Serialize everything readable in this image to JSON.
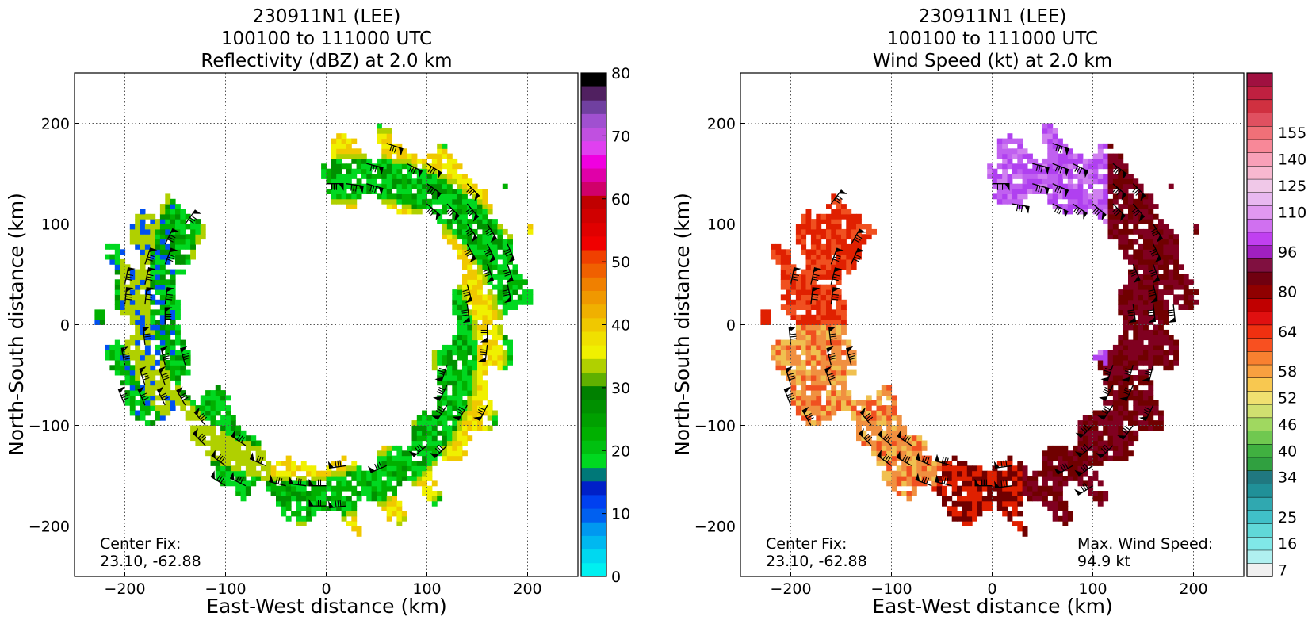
{
  "chart_data": [
    {
      "type": "heatmap",
      "title": [
        "230911N1 (LEE)",
        "100100 to 111000 UTC",
        "Reflectivity (dBZ) at 2.0 km"
      ],
      "xlabel": "East-West distance (km)",
      "ylabel": "North-South distance (km)",
      "xlim": [
        -250,
        250
      ],
      "ylim": [
        -250,
        250
      ],
      "xticks": [
        -200,
        -100,
        0,
        100,
        200
      ],
      "yticks": [
        -200,
        -100,
        0,
        100,
        200
      ],
      "grid": true,
      "annotation": [
        "Center Fix:",
        "23.10, -62.88"
      ],
      "colorbar": {
        "ticks": [
          0,
          10,
          20,
          30,
          40,
          50,
          60,
          70,
          80
        ],
        "range": [
          0,
          80
        ],
        "colors": [
          "#00f0f0",
          "#00d8f0",
          "#00b8f0",
          "#0098f0",
          "#0060f0",
          "#0040f0",
          "#0020c8",
          "#007878",
          "#00d820",
          "#00c010",
          "#00b000",
          "#00a000",
          "#009000",
          "#008000",
          "#60b000",
          "#b0d000",
          "#f0f000",
          "#f0e000",
          "#f0c800",
          "#f0b000",
          "#f09800",
          "#f08000",
          "#f06000",
          "#f04000",
          "#f00000",
          "#e00000",
          "#d00000",
          "#c00000",
          "#d0006a",
          "#e000a8",
          "#f000e0",
          "#e040f0",
          "#c050e0",
          "#a050d0",
          "#7040a0",
          "#502060",
          "#000000"
        ]
      },
      "field_palette": [
        "#00d820",
        "#00b000",
        "#009000",
        "#b0d000",
        "#f0f000",
        "#f0c800",
        "#0050f0"
      ]
    },
    {
      "type": "heatmap",
      "title": [
        "230911N1 (LEE)",
        "100100 to 111000 UTC",
        "Wind Speed (kt) at 2.0 km"
      ],
      "xlabel": "East-West distance (km)",
      "ylabel": "North-South distance (km)",
      "xlim": [
        -250,
        250
      ],
      "ylim": [
        -250,
        250
      ],
      "xticks": [
        -200,
        -100,
        0,
        100,
        200
      ],
      "yticks": [
        -200,
        -100,
        0,
        100,
        200
      ],
      "grid": true,
      "annotation": [
        "Center Fix:",
        "23.10, -62.88"
      ],
      "annotation_right": [
        "Max. Wind Speed:",
        "94.9 kt"
      ],
      "colorbar": {
        "ticks": [
          7,
          16,
          25,
          34,
          40,
          46,
          52,
          58,
          64,
          80,
          96,
          110,
          125,
          140,
          155
        ],
        "colors": [
          "#f0f0f0",
          "#b0f0f0",
          "#80e8e8",
          "#60d8d8",
          "#40c0c8",
          "#30a8b0",
          "#209098",
          "#207880",
          "#30a040",
          "#40b040",
          "#70c850",
          "#a0d860",
          "#d0e070",
          "#f0e070",
          "#f8c850",
          "#f8a040",
          "#f88030",
          "#f85020",
          "#f03010",
          "#e01010",
          "#c00000",
          "#900000",
          "#700010",
          "#801040",
          "#a020c0",
          "#c040f0",
          "#d070f0",
          "#e098f0",
          "#e8b8f0",
          "#f0c8e8",
          "#f8b8d0",
          "#f8a0b8",
          "#f88898",
          "#f07078",
          "#e05060",
          "#d03040",
          "#c02040",
          "#a01040"
        ],
        "labels_at_index": [
          0,
          2,
          4,
          7,
          9,
          11,
          13,
          15,
          18,
          21,
          24,
          27,
          29,
          31,
          33
        ]
      },
      "field_palette": [
        "#b040f0",
        "#c060f0",
        "#d080f0",
        "#800020",
        "#700000",
        "#e02000",
        "#f05020",
        "#f09040",
        "#f0c050"
      ]
    }
  ]
}
